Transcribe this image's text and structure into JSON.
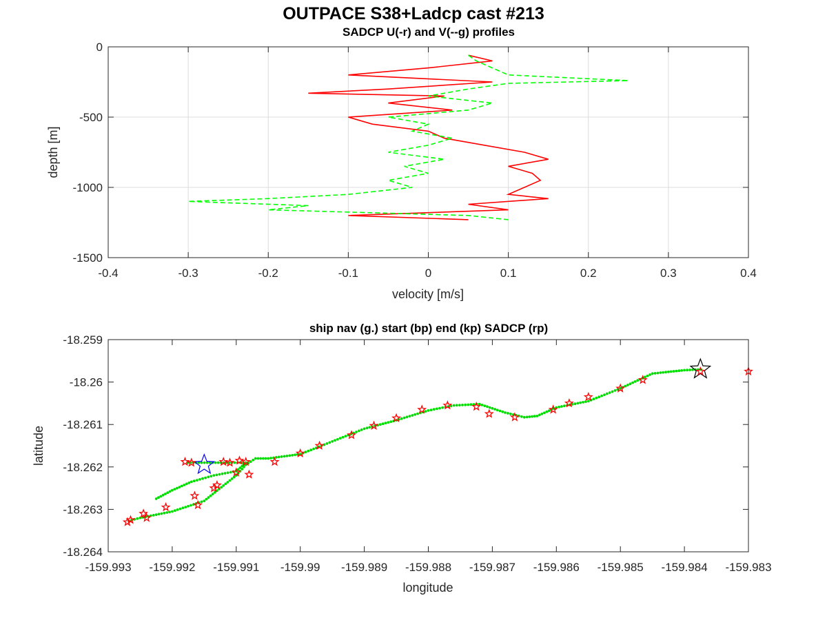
{
  "figure": {
    "title": "OUTPACE S38+Ladcp cast #213"
  },
  "chart_data": [
    {
      "type": "line",
      "title": "SADCP U(-r) and V(--g) profiles",
      "xlabel": "velocity [m/s]",
      "ylabel": "depth [m]",
      "xlim": [
        -0.4,
        0.4
      ],
      "ylim": [
        -1500,
        0
      ],
      "xticks": [
        "-0.4",
        "-0.3",
        "-0.2",
        "-0.1",
        "0",
        "0.1",
        "0.2",
        "0.3",
        "0.4"
      ],
      "yticks": [
        "0",
        "-500",
        "-1000",
        "-1500"
      ],
      "grid": true,
      "series": [
        {
          "style": "solid",
          "color": "#ff0000",
          "depth": [
            -60,
            -100,
            -150,
            -200,
            -250,
            -300,
            -330,
            -350,
            -400,
            -450,
            -500,
            -550,
            -600,
            -650,
            -700,
            -750,
            -800,
            -850,
            -900,
            -950,
            -1000,
            -1050,
            -1080,
            -1120,
            -1160,
            -1200,
            -1230
          ],
          "values": [
            0.05,
            0.08,
            0,
            -0.1,
            0.08,
            -0.05,
            -0.15,
            0.02,
            -0.05,
            0.03,
            -0.1,
            -0.07,
            0,
            0.02,
            0.07,
            0.12,
            0.15,
            0.1,
            0.13,
            0.14,
            0.12,
            0.1,
            0.15,
            0.05,
            0.1,
            -0.1,
            0.05
          ]
        },
        {
          "style": "dashed",
          "color": "#00ff00",
          "depth": [
            -60,
            -100,
            -150,
            -200,
            -240,
            -260,
            -300,
            -350,
            -400,
            -450,
            -500,
            -550,
            -600,
            -650,
            -700,
            -750,
            -800,
            -850,
            -900,
            -950,
            -1000,
            -1050,
            -1080,
            -1100,
            -1130,
            -1160,
            -1200,
            -1230
          ],
          "values": [
            0.05,
            0.06,
            0.08,
            0.1,
            0.25,
            0.1,
            0.05,
            0,
            0.08,
            0.05,
            -0.05,
            0,
            -0.02,
            0.03,
            0,
            -0.05,
            0.02,
            -0.03,
            0,
            -0.05,
            -0.02,
            -0.1,
            -0.2,
            -0.3,
            -0.15,
            -0.2,
            0.05,
            0.1
          ]
        }
      ]
    },
    {
      "type": "scatter",
      "title": "ship nav (g.) start (bp) end (kp) SADCP (rp)",
      "xlabel": "longitude",
      "ylabel": "latitude",
      "xlim": [
        -159.993,
        -159.983
      ],
      "ylim": [
        -18.264,
        -18.259
      ],
      "xticks": [
        "-159.993",
        "-159.992",
        "-159.991",
        "-159.99",
        "-159.989",
        "-159.988",
        "-159.987",
        "-159.986",
        "-159.985",
        "-159.984",
        "-159.983"
      ],
      "yticks": [
        "-18.259",
        "-18.26",
        "-18.261",
        "-18.262",
        "-18.263",
        "-18.264"
      ],
      "grid": false,
      "nav": {
        "color": "#00dd00",
        "lon": [
          -159.99268,
          -159.9925,
          -159.992,
          -159.9915,
          -159.991,
          -159.99085,
          -159.9907,
          -159.9905,
          -159.99,
          -159.9895,
          -159.989,
          -159.9885,
          -159.988,
          -159.9876,
          -159.9872,
          -159.9868,
          -159.9865,
          -159.9863,
          -159.986,
          -159.9855,
          -159.985,
          -159.9845,
          -159.984,
          -159.9837
        ],
        "lat": [
          -18.26327,
          -18.2632,
          -18.26305,
          -18.2628,
          -18.2622,
          -18.26195,
          -18.2618,
          -18.2618,
          -18.2617,
          -18.2614,
          -18.2611,
          -18.2609,
          -18.26067,
          -18.26055,
          -18.26052,
          -18.26072,
          -18.26083,
          -18.2608,
          -18.2606,
          -18.26045,
          -18.26015,
          -18.2598,
          -18.25972,
          -18.2597
        ],
        "lon2": [
          -159.99225,
          -159.992,
          -159.9917,
          -159.99135,
          -159.991,
          -159.99085,
          -159.9918
        ],
        "lat2": [
          -18.26275,
          -18.26255,
          -18.26235,
          -18.2622,
          -18.2621,
          -18.2619,
          -18.2619
        ]
      },
      "sadcp": {
        "color": "#ff0000",
        "lon": [
          -159.9927,
          -159.99265,
          -159.99245,
          -159.9924,
          -159.9921,
          -159.99165,
          -159.9916,
          -159.99135,
          -159.9913,
          -159.991,
          -159.99095,
          -159.99085,
          -159.9908,
          -159.9904,
          -159.99,
          -159.9897,
          -159.9892,
          -159.98885,
          -159.9885,
          -159.9881,
          -159.9877,
          -159.98725,
          -159.98705,
          -159.98665,
          -159.98605,
          -159.9858,
          -159.9855,
          -159.985,
          -159.98465,
          -159.98375,
          -159.983,
          -159.9918,
          -159.9917,
          -159.9912,
          -159.9911
        ],
        "lat": [
          -18.2633,
          -18.26325,
          -18.2631,
          -18.2632,
          -18.26295,
          -18.26268,
          -18.2629,
          -18.2625,
          -18.26243,
          -18.26213,
          -18.26185,
          -18.26188,
          -18.26218,
          -18.26188,
          -18.26168,
          -18.2615,
          -18.26125,
          -18.26103,
          -18.26085,
          -18.26065,
          -18.26055,
          -18.26058,
          -18.26075,
          -18.26083,
          -18.26065,
          -18.2605,
          -18.26035,
          -18.26015,
          -18.25995,
          -18.25975,
          -18.25975,
          -18.26188,
          -18.2619,
          -18.26188,
          -18.2619
        ]
      },
      "start": {
        "color": "#0000ff",
        "lon": -159.9915,
        "lat": -18.26195
      },
      "end": {
        "color": "#000000",
        "lon": -159.98375,
        "lat": -18.2597
      }
    }
  ]
}
